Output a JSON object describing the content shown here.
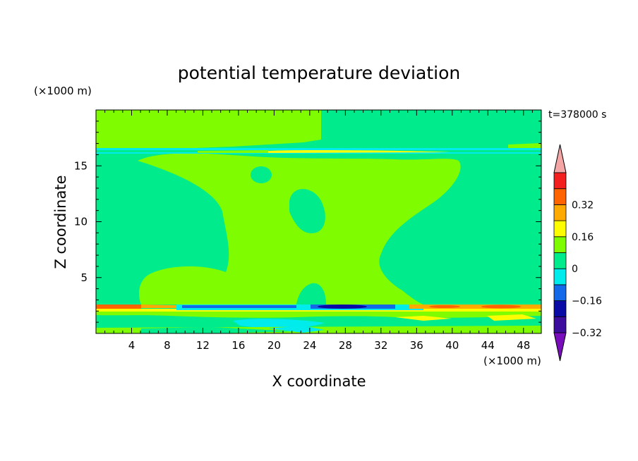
{
  "chart_data": {
    "type": "heatmap",
    "title": "potential temperature deviation",
    "xlabel": "X coordinate",
    "ylabel": "Z coordinate",
    "x_unit": "(×1000 m)",
    "y_unit": "(×1000 m)",
    "time_label": "t=378000 s",
    "xlim": [
      0,
      50
    ],
    "ylim": [
      0,
      20
    ],
    "x_ticks": [
      "4",
      "8",
      "12",
      "16",
      "20",
      "24",
      "28",
      "32",
      "36",
      "40",
      "44",
      "48"
    ],
    "y_ticks": [
      "5",
      "10",
      "15"
    ],
    "colorbar": {
      "labels": [
        "0.32",
        "0.16",
        "0",
        "−0.16",
        "−0.32"
      ],
      "levels": [
        {
          "max": -0.32,
          "color": "#7a0dbb"
        },
        {
          "min": -0.32,
          "max": -0.24,
          "color": "#3d0d9e"
        },
        {
          "min": -0.24,
          "max": -0.16,
          "color": "#0a0aa5"
        },
        {
          "min": -0.16,
          "max": -0.08,
          "color": "#1469e8"
        },
        {
          "min": -0.08,
          "max": 0.0,
          "color": "#00ebeb"
        },
        {
          "min": 0.0,
          "max": 0.08,
          "color": "#00eb8c"
        },
        {
          "min": 0.08,
          "max": 0.16,
          "color": "#7ffc00"
        },
        {
          "min": 0.16,
          "max": 0.24,
          "color": "#fdfd00"
        },
        {
          "min": 0.24,
          "max": 0.32,
          "color": "#ffaa00"
        },
        {
          "min": 0.32,
          "max": 0.4,
          "color": "#ff6400"
        },
        {
          "min": 0.4,
          "max": 0.48,
          "color": "#f31f1f"
        },
        {
          "min": 0.48,
          "color": "#f4a6a6"
        }
      ]
    },
    "field_description": "Two dominant levels: 0 to 0.08 (green) and 0.08 to 0.16 (light green). Thin shear band near z≈16 with small positive/negative anomalies; strong layered anomalies between z≈0 and z≈3 reaching below −0.32 near x≈26–30 and above 0.32 near x≈2, 40, 46."
  }
}
